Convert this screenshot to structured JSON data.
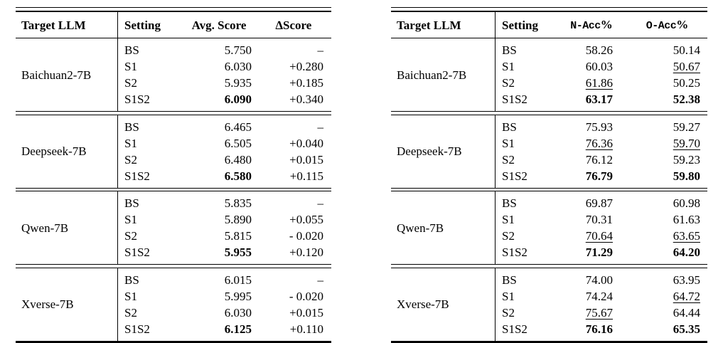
{
  "colors": {
    "text": "#000000",
    "background": "#ffffff",
    "rule": "#000000"
  },
  "tables": [
    {
      "id": "avg-score-table",
      "header": [
        {
          "label": "Target LLM"
        },
        {
          "label": "Setting"
        },
        {
          "label": "Avg. Score"
        },
        {
          "label": "∆Score"
        }
      ],
      "groups": [
        {
          "model": "Baichuan2-7B",
          "rows": [
            {
              "setting": "BS",
              "values": [
                {
                  "t": "5.750"
                },
                {
                  "t": "–"
                }
              ]
            },
            {
              "setting": "S1",
              "values": [
                {
                  "t": "6.030"
                },
                {
                  "t": "+0.280"
                }
              ]
            },
            {
              "setting": "S2",
              "values": [
                {
                  "t": "5.935"
                },
                {
                  "t": "+0.185"
                }
              ]
            },
            {
              "setting": "S1S2",
              "values": [
                {
                  "t": "6.090",
                  "b": true
                },
                {
                  "t": "+0.340"
                }
              ]
            }
          ]
        },
        {
          "model": "Deepseek-7B",
          "rows": [
            {
              "setting": "BS",
              "values": [
                {
                  "t": "6.465"
                },
                {
                  "t": "–"
                }
              ]
            },
            {
              "setting": "S1",
              "values": [
                {
                  "t": "6.505"
                },
                {
                  "t": "+0.040"
                }
              ]
            },
            {
              "setting": "S2",
              "values": [
                {
                  "t": "6.480"
                },
                {
                  "t": "+0.015"
                }
              ]
            },
            {
              "setting": "S1S2",
              "values": [
                {
                  "t": "6.580",
                  "b": true
                },
                {
                  "t": "+0.115"
                }
              ]
            }
          ]
        },
        {
          "model": "Qwen-7B",
          "rows": [
            {
              "setting": "BS",
              "values": [
                {
                  "t": "5.835"
                },
                {
                  "t": "–"
                }
              ]
            },
            {
              "setting": "S1",
              "values": [
                {
                  "t": "5.890"
                },
                {
                  "t": "+0.055"
                }
              ]
            },
            {
              "setting": "S2",
              "values": [
                {
                  "t": "5.815"
                },
                {
                  "t": "- 0.020"
                }
              ]
            },
            {
              "setting": "S1S2",
              "values": [
                {
                  "t": "5.955",
                  "b": true
                },
                {
                  "t": "+0.120"
                }
              ]
            }
          ]
        },
        {
          "model": "Xverse-7B",
          "rows": [
            {
              "setting": "BS",
              "values": [
                {
                  "t": "6.015"
                },
                {
                  "t": "–"
                }
              ]
            },
            {
              "setting": "S1",
              "values": [
                {
                  "t": "5.995"
                },
                {
                  "t": "- 0.020"
                }
              ]
            },
            {
              "setting": "S2",
              "values": [
                {
                  "t": "6.030"
                },
                {
                  "t": "+0.015"
                }
              ]
            },
            {
              "setting": "S1S2",
              "values": [
                {
                  "t": "6.125",
                  "b": true
                },
                {
                  "t": "+0.110"
                }
              ]
            }
          ]
        }
      ]
    },
    {
      "id": "accuracy-table",
      "header": [
        {
          "label": "Target LLM"
        },
        {
          "label": "Setting"
        },
        {
          "label": "N-Acc%",
          "mono": true
        },
        {
          "label": "O-Acc%",
          "mono": true
        }
      ],
      "groups": [
        {
          "model": "Baichuan2-7B",
          "rows": [
            {
              "setting": "BS",
              "values": [
                {
                  "t": "58.26"
                },
                {
                  "t": "50.14"
                }
              ]
            },
            {
              "setting": "S1",
              "values": [
                {
                  "t": "60.03"
                },
                {
                  "t": "50.67",
                  "u": true
                }
              ]
            },
            {
              "setting": "S2",
              "values": [
                {
                  "t": "61.86",
                  "u": true
                },
                {
                  "t": "50.25"
                }
              ]
            },
            {
              "setting": "S1S2",
              "values": [
                {
                  "t": "63.17",
                  "b": true
                },
                {
                  "t": "52.38",
                  "b": true
                }
              ]
            }
          ]
        },
        {
          "model": "Deepseek-7B",
          "rows": [
            {
              "setting": "BS",
              "values": [
                {
                  "t": "75.93"
                },
                {
                  "t": "59.27"
                }
              ]
            },
            {
              "setting": "S1",
              "values": [
                {
                  "t": "76.36",
                  "u": true
                },
                {
                  "t": "59.70",
                  "u": true
                }
              ]
            },
            {
              "setting": "S2",
              "values": [
                {
                  "t": "76.12"
                },
                {
                  "t": "59.23"
                }
              ]
            },
            {
              "setting": "S1S2",
              "values": [
                {
                  "t": "76.79",
                  "b": true
                },
                {
                  "t": "59.80",
                  "b": true
                }
              ]
            }
          ]
        },
        {
          "model": "Qwen-7B",
          "rows": [
            {
              "setting": "BS",
              "values": [
                {
                  "t": "69.87"
                },
                {
                  "t": "60.98"
                }
              ]
            },
            {
              "setting": "S1",
              "values": [
                {
                  "t": "70.31"
                },
                {
                  "t": "61.63"
                }
              ]
            },
            {
              "setting": "S2",
              "values": [
                {
                  "t": "70.64",
                  "u": true
                },
                {
                  "t": "63.65",
                  "u": true
                }
              ]
            },
            {
              "setting": "S1S2",
              "values": [
                {
                  "t": "71.29",
                  "b": true
                },
                {
                  "t": "64.20",
                  "b": true
                }
              ]
            }
          ]
        },
        {
          "model": "Xverse-7B",
          "rows": [
            {
              "setting": "BS",
              "values": [
                {
                  "t": "74.00"
                },
                {
                  "t": "63.95"
                }
              ]
            },
            {
              "setting": "S1",
              "values": [
                {
                  "t": "74.24"
                },
                {
                  "t": "64.72",
                  "u": true
                }
              ]
            },
            {
              "setting": "S2",
              "values": [
                {
                  "t": "75.67",
                  "u": true
                },
                {
                  "t": "64.44"
                }
              ]
            },
            {
              "setting": "S1S2",
              "values": [
                {
                  "t": "76.16",
                  "b": true
                },
                {
                  "t": "65.35",
                  "b": true
                }
              ]
            }
          ]
        }
      ]
    }
  ]
}
